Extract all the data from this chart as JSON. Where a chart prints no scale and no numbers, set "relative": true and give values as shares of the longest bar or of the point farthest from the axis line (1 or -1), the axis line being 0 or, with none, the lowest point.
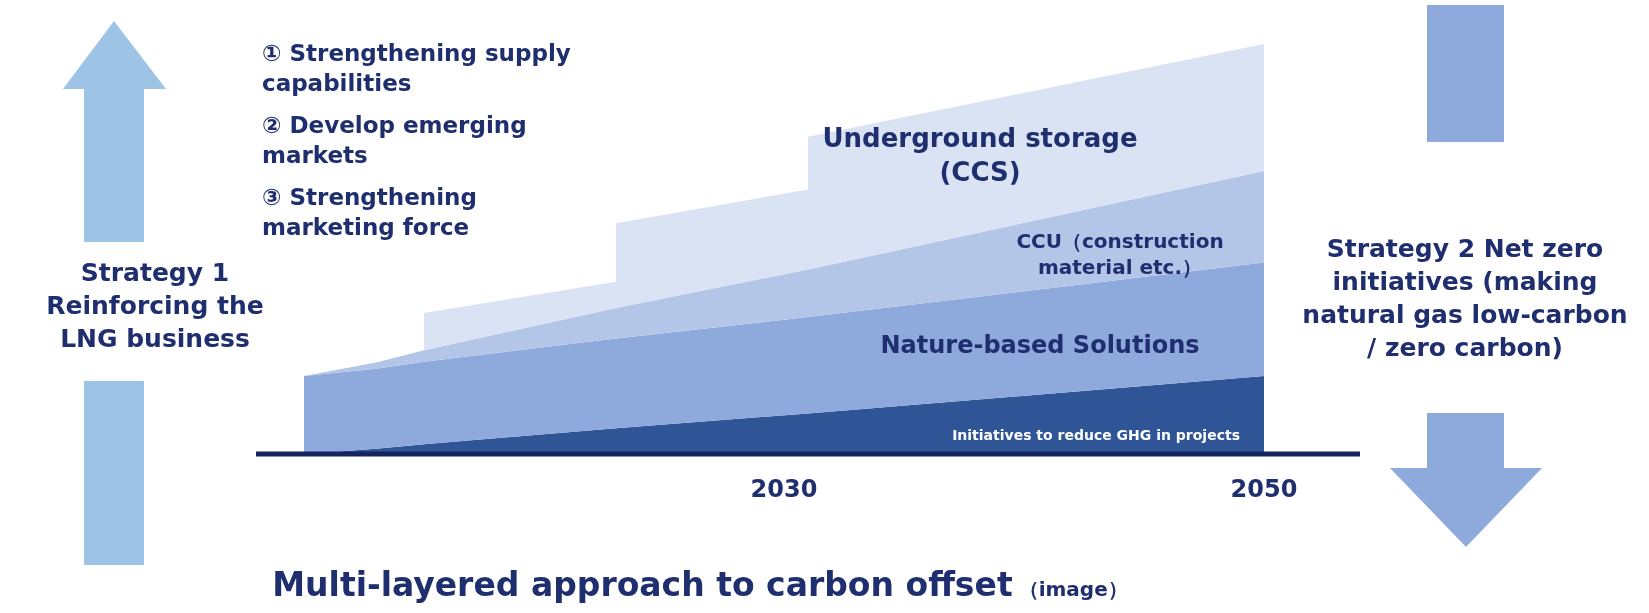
{
  "chart_data": {
    "type": "area",
    "title": "Multi-layered approach to carbon offset",
    "subtitle": "（image）",
    "x": [
      2010,
      2013,
      2015,
      2015,
      2023,
      2023,
      2031,
      2031,
      2050
    ],
    "xlim": [
      2008,
      2054
    ],
    "xticks": [
      2030,
      2050
    ],
    "relative": true,
    "stacked": true,
    "series": [
      {
        "name": "Initiatives to reduce GHG in projects",
        "color": "#2f5597",
        "values": [
          0,
          0.013,
          0.024,
          0.024,
          0.063,
          0.063,
          0.099,
          0.099,
          0.19
        ]
      },
      {
        "name": "Nature-based  Solutions",
        "color": "#8eaadc",
        "values": [
          0.19,
          0.195,
          0.201,
          0.201,
          0.219,
          0.219,
          0.235,
          0.235,
          0.277
        ]
      },
      {
        "name": "CCU（construction material etc.）",
        "color": "#b4c6e7",
        "values": [
          0,
          0.015,
          0.028,
          0.028,
          0.074,
          0.074,
          0.116,
          0.116,
          0.223
        ]
      },
      {
        "name": "Underground storage (CCS)",
        "color": "#dae3f3",
        "values": [
          0,
          0,
          0,
          0.091,
          0.064,
          0.207,
          0.195,
          0.324,
          0.31
        ]
      }
    ],
    "annotations": [
      "① Strengthening supply capabilities",
      "② Develop emerging markets",
      "③ Strengthening marketing force",
      "Strategy  1 Reinforcing the LNG business",
      "Strategy  2 Net zero initiatives (making natural gas low-carbon / zero carbon)"
    ]
  }
}
